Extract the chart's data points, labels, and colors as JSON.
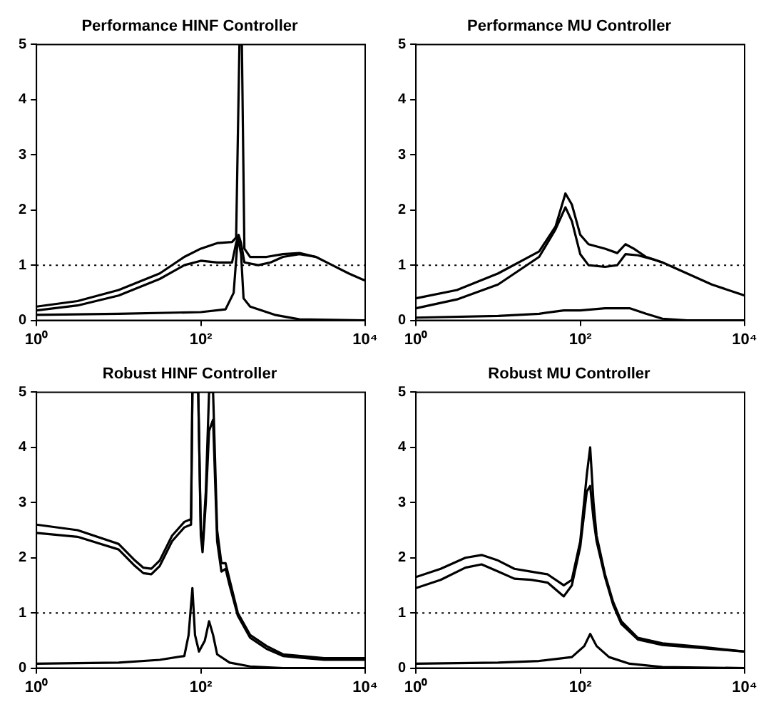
{
  "chart_data": [
    {
      "type": "line",
      "title": "Performance HINF Controller",
      "log": "x",
      "xlim": [
        1,
        10000
      ],
      "xticks": [
        {
          "value": 1,
          "label": "10⁰"
        },
        {
          "value": 100,
          "label": "10²"
        },
        {
          "value": 10000,
          "label": "10⁴"
        }
      ],
      "ylim": [
        0,
        5
      ],
      "yticks": [
        0,
        1,
        2,
        3,
        4,
        5
      ],
      "ref_lines": [
        {
          "axis": "y",
          "value": 1,
          "line_style": "dotted"
        }
      ],
      "series": [
        {
          "color": "#000000",
          "x": [
            1,
            3.16,
            10,
            31.6,
            63,
            100,
            158,
            240,
            269,
            295,
            316,
            339,
            398,
            631,
            1000,
            1585,
            2512,
            3981,
            6310,
            10000
          ],
          "values": [
            0.25,
            0.35,
            0.55,
            0.85,
            1.15,
            1.3,
            1.4,
            1.42,
            1.5,
            5,
            5,
            1.3,
            1.15,
            1.15,
            1.2,
            1.22,
            1.15,
            1.0,
            0.85,
            0.72
          ]
        },
        {
          "color": "#000000",
          "x": [
            1,
            3.16,
            10,
            31.6,
            63,
            100,
            158,
            240,
            269,
            288,
            309,
            339,
            501,
            708,
            1000,
            1585,
            2512
          ],
          "values": [
            0.18,
            0.27,
            0.45,
            0.75,
            1.0,
            1.08,
            1.05,
            1.05,
            1.4,
            1.55,
            1.4,
            1.05,
            1.0,
            1.05,
            1.15,
            1.2,
            1.15
          ]
        },
        {
          "color": "#000000",
          "x": [
            1,
            10,
            100,
            200,
            251,
            282,
            309,
            331,
            398,
            794,
            1585,
            10000
          ],
          "values": [
            0.1,
            0.12,
            0.15,
            0.2,
            0.5,
            1.5,
            1.2,
            0.4,
            0.25,
            0.1,
            0.02,
            0
          ]
        }
      ]
    },
    {
      "type": "line",
      "title": "Performance MU Controller",
      "log": "x",
      "xlim": [
        1,
        10000
      ],
      "xticks": [
        {
          "value": 1,
          "label": "10⁰"
        },
        {
          "value": 100,
          "label": "10²"
        },
        {
          "value": 10000,
          "label": "10⁴"
        }
      ],
      "ylim": [
        0,
        5
      ],
      "yticks": [
        0,
        1,
        2,
        3,
        4,
        5
      ],
      "ref_lines": [
        {
          "axis": "y",
          "value": 1,
          "line_style": "dotted"
        }
      ],
      "series": [
        {
          "color": "#000000",
          "x": [
            1,
            3.16,
            10,
            31.6,
            50,
            66,
            79,
            100,
            126,
            200,
            282,
            355,
            447,
            631,
            1000,
            1995,
            3981,
            10000
          ],
          "values": [
            0.4,
            0.55,
            0.85,
            1.25,
            1.7,
            2.3,
            2.1,
            1.55,
            1.38,
            1.3,
            1.22,
            1.38,
            1.3,
            1.15,
            1.05,
            0.85,
            0.65,
            0.45
          ]
        },
        {
          "color": "#000000",
          "x": [
            1,
            3.16,
            10,
            31.6,
            50,
            66,
            79,
            100,
            126,
            200,
            282,
            355,
            501,
            794,
            1000
          ],
          "values": [
            0.22,
            0.38,
            0.65,
            1.15,
            1.65,
            2.05,
            1.8,
            1.2,
            1.0,
            0.97,
            1.0,
            1.2,
            1.18,
            1.1,
            1.05
          ]
        },
        {
          "color": "#000000",
          "x": [
            1,
            10,
            31.6,
            63,
            100,
            200,
            398,
            631,
            1000,
            1995,
            10000
          ],
          "values": [
            0.05,
            0.08,
            0.12,
            0.18,
            0.18,
            0.22,
            0.22,
            0.12,
            0.03,
            0,
            0
          ]
        }
      ]
    },
    {
      "type": "line",
      "title": "Robust HINF Controller",
      "log": "x",
      "xlim": [
        1,
        10000
      ],
      "xticks": [
        {
          "value": 1,
          "label": "10⁰"
        },
        {
          "value": 100,
          "label": "10²"
        },
        {
          "value": 10000,
          "label": "10⁴"
        }
      ],
      "ylim": [
        0,
        5
      ],
      "yticks": [
        0,
        1,
        2,
        3,
        4,
        5
      ],
      "ref_lines": [
        {
          "axis": "y",
          "value": 1,
          "line_style": "dotted"
        }
      ],
      "series": [
        {
          "color": "#000000",
          "x": [
            1,
            3.16,
            10,
            15.8,
            20,
            25,
            31.6,
            44.7,
            63,
            76,
            79,
            93,
            100,
            105,
            115,
            126,
            141,
            158,
            178,
            200,
            224,
            282,
            398,
            631,
            1000,
            3162,
            10000
          ],
          "values": [
            2.6,
            2.5,
            2.25,
            1.95,
            1.82,
            1.8,
            1.95,
            2.4,
            2.65,
            2.7,
            5,
            5,
            2.5,
            2.2,
            3.2,
            5,
            5,
            2.5,
            1.9,
            1.9,
            1.6,
            1.0,
            0.6,
            0.4,
            0.25,
            0.18,
            0.18
          ]
        },
        {
          "color": "#000000",
          "x": [
            1,
            3.16,
            10,
            15.8,
            20,
            25,
            31.6,
            44.7,
            63,
            76,
            79,
            93,
            100,
            105,
            115,
            126,
            141,
            158,
            178,
            200,
            224,
            282,
            398,
            631,
            1000,
            3162,
            10000
          ],
          "values": [
            2.45,
            2.38,
            2.15,
            1.85,
            1.72,
            1.7,
            1.85,
            2.3,
            2.55,
            2.6,
            5,
            5,
            2.4,
            2.1,
            3.0,
            4.3,
            4.5,
            2.3,
            1.75,
            1.8,
            1.5,
            0.95,
            0.55,
            0.35,
            0.22,
            0.15,
            0.15
          ]
        },
        {
          "color": "#000000",
          "x": [
            1,
            10,
            31.6,
            63,
            71,
            79,
            85,
            95,
            112,
            126,
            141,
            158,
            224,
            398,
            1000,
            10000
          ],
          "values": [
            0.08,
            0.1,
            0.15,
            0.22,
            0.6,
            1.45,
            0.6,
            0.3,
            0.5,
            0.85,
            0.6,
            0.25,
            0.1,
            0.03,
            0,
            0
          ]
        }
      ]
    },
    {
      "type": "line",
      "title": "Robust MU Controller",
      "log": "x",
      "xlim": [
        1,
        10000
      ],
      "xticks": [
        {
          "value": 1,
          "label": "10⁰"
        },
        {
          "value": 100,
          "label": "10²"
        },
        {
          "value": 10000,
          "label": "10⁴"
        }
      ],
      "ylim": [
        0,
        5
      ],
      "yticks": [
        0,
        1,
        2,
        3,
        4,
        5
      ],
      "ref_lines": [
        {
          "axis": "y",
          "value": 1,
          "line_style": "dotted"
        }
      ],
      "series": [
        {
          "color": "#000000",
          "x": [
            1,
            2,
            4,
            6.3,
            10,
            15.8,
            25,
            40,
            63,
            79,
            100,
            120,
            132,
            145,
            158,
            200,
            251,
            316,
            501,
            1000,
            3162,
            10000
          ],
          "values": [
            1.65,
            1.8,
            2.0,
            2.05,
            1.95,
            1.8,
            1.75,
            1.7,
            1.5,
            1.6,
            2.3,
            3.5,
            4.0,
            3.0,
            2.4,
            1.7,
            1.2,
            0.85,
            0.55,
            0.45,
            0.38,
            0.3
          ]
        },
        {
          "color": "#000000",
          "x": [
            1,
            2,
            4,
            6.3,
            10,
            15.8,
            25,
            40,
            63,
            79,
            100,
            120,
            132,
            145,
            158,
            200,
            251,
            316,
            501,
            1000,
            3162,
            10000
          ],
          "values": [
            1.45,
            1.6,
            1.82,
            1.88,
            1.75,
            1.62,
            1.6,
            1.55,
            1.3,
            1.5,
            2.2,
            3.2,
            3.3,
            2.7,
            2.3,
            1.65,
            1.15,
            0.8,
            0.52,
            0.42,
            0.36,
            0.3
          ]
        },
        {
          "color": "#000000",
          "x": [
            1,
            10,
            31.6,
            79,
            112,
            132,
            158,
            224,
            398,
            1000,
            10000
          ],
          "values": [
            0.08,
            0.1,
            0.13,
            0.2,
            0.4,
            0.62,
            0.4,
            0.2,
            0.08,
            0.02,
            0
          ]
        }
      ]
    }
  ]
}
